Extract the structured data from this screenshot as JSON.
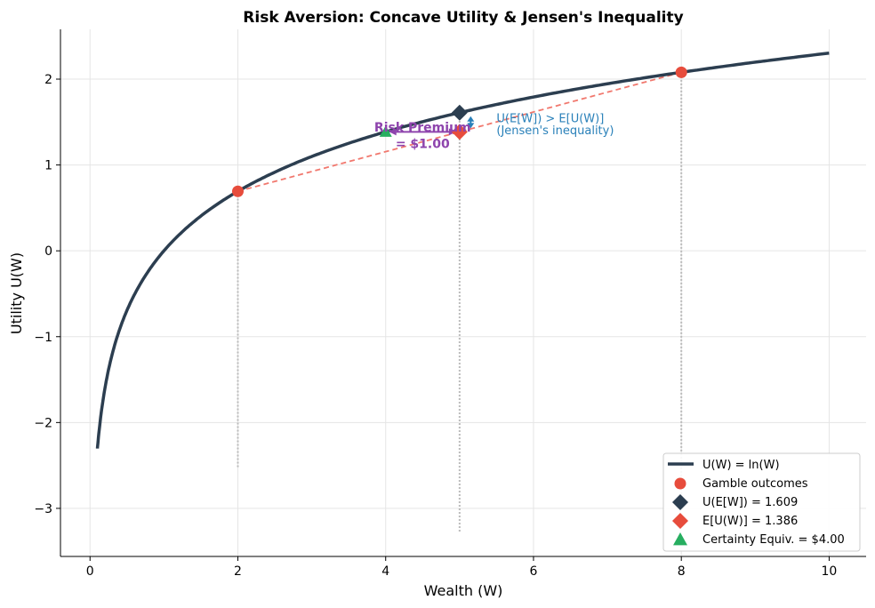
{
  "chart_data": {
    "type": "line",
    "title": "Risk Aversion: Concave Utility & Jensen's Inequality",
    "xlabel": "Wealth (W)",
    "ylabel": "Utility U(W)",
    "xlim": [
      -0.4,
      10.5
    ],
    "ylim": [
      -3.56,
      2.58
    ],
    "xticks": [
      0,
      2,
      4,
      6,
      8,
      10
    ],
    "yticks": [
      -3,
      -2,
      -1,
      0,
      1,
      2
    ],
    "ytick_labels": [
      "−3",
      "−2",
      "−1",
      "0",
      "1",
      "2"
    ],
    "grid": true,
    "legend_position": "bottom-right",
    "curve": {
      "name": "U(W) = ln(W)",
      "function": "ln",
      "x_range": [
        0.1,
        10
      ],
      "color": "#2c3e50"
    },
    "gamble_outcomes": {
      "name": "Gamble outcomes",
      "points": [
        [
          2,
          0.693
        ],
        [
          8,
          2.079
        ]
      ],
      "color": "#e74c3c"
    },
    "chord": {
      "from": [
        2,
        0.693
      ],
      "to": [
        8,
        2.079
      ],
      "color": "#f1786e",
      "style": "dashed"
    },
    "u_of_expected": {
      "name": "U(E[W]) = 1.609",
      "x": 5,
      "y": 1.609,
      "color": "#2c3e50",
      "marker": "diamond"
    },
    "expected_utility": {
      "name": "E[U(W)] = 1.386",
      "x": 5,
      "y": 1.386,
      "color": "#e74c3c",
      "marker": "diamond"
    },
    "certainty_equivalent": {
      "name": "Certainty Equiv. = $4.00",
      "x": 4,
      "y": 1.386,
      "color": "#27ae60",
      "marker": "triangle"
    },
    "vlines": [
      {
        "x": 2,
        "y_from": -2.52,
        "y_to": 0.693
      },
      {
        "x": 5,
        "y_from": -3.27,
        "y_to": 1.609
      },
      {
        "x": 8,
        "y_from": -3.0,
        "y_to": 2.079
      }
    ],
    "annotations": {
      "risk_premium": {
        "line1": "Risk Premium",
        "line2": "= $1.00",
        "color": "#8e44ad",
        "arrow_from": 4,
        "arrow_to": 5,
        "y": 1.386
      },
      "jensen": {
        "line1": "U(E[W]) > E[U(W)]",
        "line2": "(Jensen's inequality)",
        "color": "#2980b9",
        "arrow_x": 5.15
      }
    }
  }
}
